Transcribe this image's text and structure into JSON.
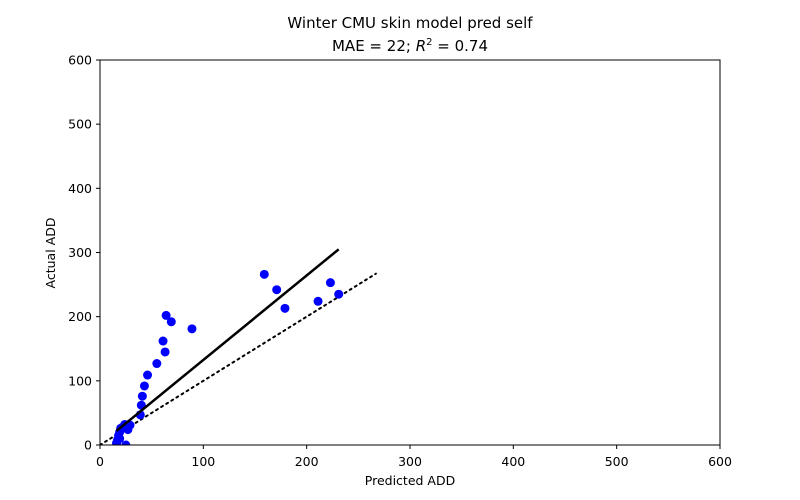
{
  "chart_data": {
    "type": "scatter",
    "title": "Winter CMU skin model pred self",
    "subtitle": {
      "prefix": "MAE = 22; ",
      "r_symbol": "R",
      "r_exponent": "2",
      "suffix": " = 0.74"
    },
    "xlabel": "Predicted ADD",
    "ylabel": "Actual ADD",
    "xlim": [
      0,
      600
    ],
    "ylim": [
      0,
      600
    ],
    "xticks": [
      0,
      100,
      200,
      300,
      400,
      500,
      600
    ],
    "yticks": [
      0,
      100,
      200,
      300,
      400,
      500,
      600
    ],
    "grid": false,
    "marker_color": "#0000ff",
    "line_color": "#000000",
    "points": [
      {
        "x": 16,
        "y": 3
      },
      {
        "x": 17,
        "y": 8
      },
      {
        "x": 18,
        "y": 15
      },
      {
        "x": 19,
        "y": 10
      },
      {
        "x": 19,
        "y": 20
      },
      {
        "x": 20,
        "y": 26
      },
      {
        "x": 22,
        "y": 28
      },
      {
        "x": 24,
        "y": 32
      },
      {
        "x": 25,
        "y": 0
      },
      {
        "x": 27,
        "y": 24
      },
      {
        "x": 29,
        "y": 31
      },
      {
        "x": 39,
        "y": 47
      },
      {
        "x": 40,
        "y": 62
      },
      {
        "x": 41,
        "y": 76
      },
      {
        "x": 43,
        "y": 92
      },
      {
        "x": 46,
        "y": 109
      },
      {
        "x": 55,
        "y": 127
      },
      {
        "x": 61,
        "y": 162
      },
      {
        "x": 63,
        "y": 145
      },
      {
        "x": 64,
        "y": 202
      },
      {
        "x": 69,
        "y": 192
      },
      {
        "x": 89,
        "y": 181
      },
      {
        "x": 159,
        "y": 266
      },
      {
        "x": 171,
        "y": 242
      },
      {
        "x": 179,
        "y": 213
      },
      {
        "x": 211,
        "y": 224
      },
      {
        "x": 223,
        "y": 253
      },
      {
        "x": 231,
        "y": 235
      }
    ],
    "fit_line": {
      "x": [
        16,
        231
      ],
      "y": [
        22,
        305
      ]
    },
    "identity_line": {
      "x": [
        0,
        267
      ],
      "y": [
        0,
        267
      ]
    }
  }
}
